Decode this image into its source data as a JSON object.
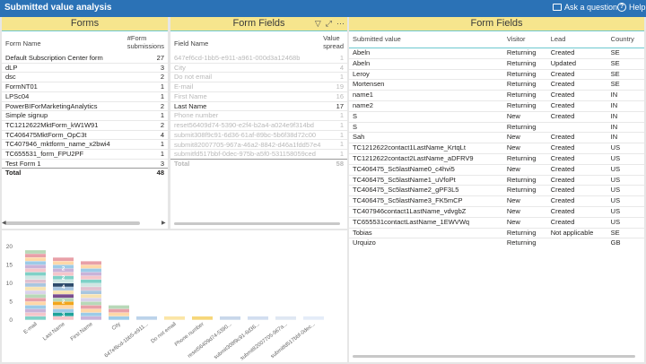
{
  "title": "Submitted value analysis",
  "toolbar": {
    "ask_label": "Ask a question",
    "help_label": "Help"
  },
  "forms": {
    "title": "Forms",
    "col_name": "Form Name",
    "col_count_line1": "#Form",
    "col_count_line2": "submissions",
    "rows": [
      {
        "name": "Default Subscription Center form",
        "count": "27"
      },
      {
        "name": "dLP",
        "count": "3"
      },
      {
        "name": "dsc",
        "count": "2"
      },
      {
        "name": "FormNT01",
        "count": "1"
      },
      {
        "name": "LPSc04",
        "count": "1"
      },
      {
        "name": "PowerBIForMarketingAnalytics",
        "count": "2"
      },
      {
        "name": "Simple signup",
        "count": "1"
      },
      {
        "name": "TC1212622MktForm_kW1W91",
        "count": "2"
      },
      {
        "name": "TC406475MktForm_OpC3t",
        "count": "4"
      },
      {
        "name": "TC407946_mktform_name_x2bwi4",
        "count": "1"
      },
      {
        "name": "TC655531_form_FPU2PF",
        "count": "1"
      },
      {
        "name": "Test Form 1",
        "count": "3"
      }
    ],
    "total_label": "Total",
    "total_value": "48"
  },
  "fields_left": {
    "title": "Form Fields",
    "col_name": "Field Name",
    "col_value_line1": "Value",
    "col_value_line2": "spread",
    "rows": [
      {
        "name": "647ef6cd-1bb5-e911-a961-000d3a12468b",
        "value": "1",
        "state": "faded"
      },
      {
        "name": "City",
        "value": "4",
        "state": "faded"
      },
      {
        "name": "Do not email",
        "value": "1",
        "state": "faded"
      },
      {
        "name": "E-mail",
        "value": "19",
        "state": "faded"
      },
      {
        "name": "First Name",
        "value": "16",
        "state": "faded"
      },
      {
        "name": "Last Name",
        "value": "17",
        "state": "active"
      },
      {
        "name": "Phone number",
        "value": "1",
        "state": "faded"
      },
      {
        "name": "reset56409d74-5390-e2f4-b2a4-a024e9f314bd",
        "value": "1",
        "state": "faded"
      },
      {
        "name": "submit308f9c91-6d36-61af-89bc-5b6f38d72c00",
        "value": "1",
        "state": "faded"
      },
      {
        "name": "submit82007705-967a-46a2-8842-d46a1fdd57e4",
        "value": "1",
        "state": "faded"
      },
      {
        "name": "submitfd517bbf-0dec-975b-a5f0-531158059ced",
        "value": "1",
        "state": "faded"
      }
    ],
    "total_label": "Total",
    "total_value": "58"
  },
  "fields_right": {
    "title": "Form Fields",
    "columns": [
      "Submitted value",
      "Visitor",
      "Lead",
      "Country"
    ],
    "rows": [
      [
        "Abeln",
        "Returning",
        "Created",
        "SE"
      ],
      [
        "Abeln",
        "Returning",
        "Updated",
        "SE"
      ],
      [
        "Leroy",
        "Returning",
        "Created",
        "SE"
      ],
      [
        "Mortensen",
        "Returning",
        "Created",
        "SE"
      ],
      [
        "name1",
        "Returning",
        "Created",
        "IN"
      ],
      [
        "name2",
        "Returning",
        "Created",
        "IN"
      ],
      [
        "S",
        "New",
        "Created",
        "IN"
      ],
      [
        "S",
        "Returning",
        "",
        "IN"
      ],
      [
        "Sah",
        "New",
        "Created",
        "IN"
      ],
      [
        "TC1212622contact1LastName_KrtqLt",
        "New",
        "Created",
        "US"
      ],
      [
        "TC1212622contact2LastName_aDFRV9",
        "Returning",
        "Created",
        "US"
      ],
      [
        "TC406475_Sc5lastName0_c4hvi5",
        "New",
        "Created",
        "US"
      ],
      [
        "TC406475_Sc5lastName1_uVfoPt",
        "Returning",
        "Created",
        "US"
      ],
      [
        "TC406475_Sc5lastName2_gPF3L5",
        "Returning",
        "Created",
        "US"
      ],
      [
        "TC406475_Sc5lastName3_FK5mCP",
        "New",
        "Created",
        "US"
      ],
      [
        "TC407946contact1LastName_vdvgbZ",
        "New",
        "Created",
        "US"
      ],
      [
        "TC655531contactLastName_1EWVWq",
        "New",
        "Created",
        "US"
      ],
      [
        "Tobias",
        "Returning",
        "Not applicable",
        "SE"
      ],
      [
        "Urquizo",
        "Returning",
        "",
        "GB"
      ]
    ]
  },
  "chart_data": {
    "type": "bar",
    "stacked": true,
    "ylim": [
      0,
      20
    ],
    "yticks": [
      "20",
      "15",
      "10",
      "5",
      "0"
    ],
    "categories": [
      "E-mail",
      "Last Name",
      "First Name",
      "City",
      "647ef6cd-1bb5-e911...",
      "Do not email",
      "Phone number",
      "reset56409d74-5390...",
      "submit308f9c91-6d36...",
      "submit82007705-967a...",
      "submitfd517bbf-0dec..."
    ],
    "totals": [
      19,
      17,
      16,
      4,
      1,
      1,
      1,
      1,
      1,
      1,
      1
    ],
    "data_labels": [
      {
        "category": "Last Name",
        "labels": [
          "3",
          "2",
          "4",
          "2",
          "2"
        ]
      }
    ]
  }
}
